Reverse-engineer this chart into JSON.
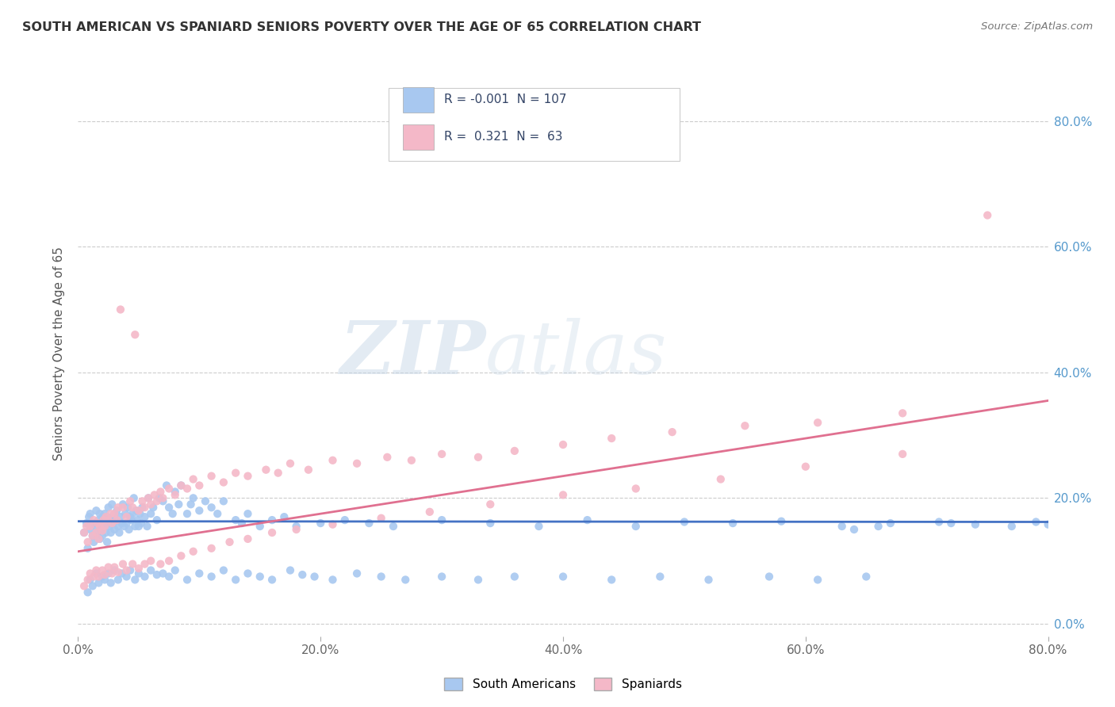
{
  "title": "SOUTH AMERICAN VS SPANIARD SENIORS POVERTY OVER THE AGE OF 65 CORRELATION CHART",
  "source": "Source: ZipAtlas.com",
  "ylabel": "Seniors Poverty Over the Age of 65",
  "xlim": [
    0.0,
    0.8
  ],
  "ylim": [
    -0.02,
    0.88
  ],
  "xtick_vals": [
    0.0,
    0.2,
    0.4,
    0.6,
    0.8
  ],
  "xtick_labels": [
    "0.0%",
    "20.0%",
    "40.0%",
    "60.0%",
    "80.0%"
  ],
  "ytick_vals": [
    0.0,
    0.2,
    0.4,
    0.6,
    0.8
  ],
  "ytick_labels_right": [
    "0.0%",
    "20.0%",
    "40.0%",
    "60.0%",
    "80.0%"
  ],
  "color_blue": "#a8c8f0",
  "color_pink": "#f4b8c8",
  "line_blue": "#4472c4",
  "line_pink": "#e07090",
  "grid_color": "#cccccc",
  "background_color": "#ffffff",
  "title_color": "#333333",
  "source_color": "#777777",
  "right_axis_color": "#5599cc",
  "blue_trendline_x": [
    0.0,
    0.8
  ],
  "blue_trendline_y": [
    0.163,
    0.162
  ],
  "pink_trendline_x": [
    0.0,
    0.8
  ],
  "pink_trendline_y": [
    0.115,
    0.355
  ],
  "blue_x": [
    0.005,
    0.007,
    0.008,
    0.009,
    0.01,
    0.01,
    0.012,
    0.013,
    0.013,
    0.015,
    0.015,
    0.016,
    0.017,
    0.018,
    0.018,
    0.019,
    0.02,
    0.02,
    0.021,
    0.022,
    0.022,
    0.023,
    0.023,
    0.024,
    0.025,
    0.025,
    0.026,
    0.027,
    0.028,
    0.028,
    0.029,
    0.03,
    0.03,
    0.031,
    0.032,
    0.033,
    0.034,
    0.035,
    0.036,
    0.037,
    0.038,
    0.039,
    0.04,
    0.041,
    0.042,
    0.043,
    0.044,
    0.045,
    0.046,
    0.047,
    0.048,
    0.049,
    0.05,
    0.051,
    0.052,
    0.053,
    0.055,
    0.057,
    0.058,
    0.06,
    0.062,
    0.065,
    0.067,
    0.07,
    0.073,
    0.075,
    0.078,
    0.08,
    0.083,
    0.085,
    0.09,
    0.093,
    0.095,
    0.1,
    0.105,
    0.11,
    0.115,
    0.12,
    0.13,
    0.135,
    0.14,
    0.15,
    0.16,
    0.17,
    0.18,
    0.2,
    0.22,
    0.24,
    0.26,
    0.3,
    0.34,
    0.38,
    0.42,
    0.46,
    0.5,
    0.54,
    0.58,
    0.63,
    0.67,
    0.71,
    0.74,
    0.77,
    0.79,
    0.8,
    0.72,
    0.66,
    0.64
  ],
  "blue_y": [
    0.145,
    0.16,
    0.12,
    0.17,
    0.15,
    0.175,
    0.14,
    0.13,
    0.16,
    0.155,
    0.18,
    0.145,
    0.165,
    0.135,
    0.175,
    0.15,
    0.14,
    0.17,
    0.16,
    0.155,
    0.175,
    0.145,
    0.165,
    0.13,
    0.16,
    0.185,
    0.155,
    0.145,
    0.17,
    0.19,
    0.16,
    0.15,
    0.175,
    0.165,
    0.18,
    0.155,
    0.145,
    0.17,
    0.16,
    0.19,
    0.155,
    0.175,
    0.16,
    0.185,
    0.15,
    0.17,
    0.165,
    0.175,
    0.2,
    0.155,
    0.18,
    0.165,
    0.155,
    0.175,
    0.16,
    0.185,
    0.17,
    0.155,
    0.2,
    0.175,
    0.185,
    0.165,
    0.2,
    0.195,
    0.22,
    0.185,
    0.175,
    0.21,
    0.19,
    0.22,
    0.175,
    0.19,
    0.2,
    0.18,
    0.195,
    0.185,
    0.175,
    0.195,
    0.165,
    0.16,
    0.175,
    0.155,
    0.165,
    0.17,
    0.155,
    0.16,
    0.165,
    0.16,
    0.155,
    0.165,
    0.16,
    0.155,
    0.165,
    0.155,
    0.162,
    0.16,
    0.163,
    0.155,
    0.16,
    0.162,
    0.158,
    0.155,
    0.162,
    0.158,
    0.16,
    0.155,
    0.15
  ],
  "blue_x2": [
    0.008,
    0.01,
    0.012,
    0.015,
    0.017,
    0.02,
    0.022,
    0.025,
    0.027,
    0.03,
    0.033,
    0.036,
    0.04,
    0.043,
    0.047,
    0.05,
    0.055,
    0.06,
    0.065,
    0.07,
    0.075,
    0.08,
    0.09,
    0.1,
    0.11,
    0.12,
    0.13,
    0.14,
    0.15,
    0.16,
    0.175,
    0.185,
    0.195,
    0.21,
    0.23,
    0.25,
    0.27,
    0.3,
    0.33,
    0.36,
    0.4,
    0.44,
    0.48,
    0.52,
    0.57,
    0.61,
    0.65
  ],
  "blue_y2": [
    0.05,
    0.07,
    0.06,
    0.08,
    0.065,
    0.075,
    0.07,
    0.08,
    0.065,
    0.085,
    0.07,
    0.08,
    0.075,
    0.085,
    0.07,
    0.08,
    0.075,
    0.085,
    0.078,
    0.08,
    0.075,
    0.085,
    0.07,
    0.08,
    0.075,
    0.085,
    0.07,
    0.08,
    0.075,
    0.07,
    0.085,
    0.078,
    0.075,
    0.07,
    0.08,
    0.075,
    0.07,
    0.075,
    0.07,
    0.075,
    0.075,
    0.07,
    0.075,
    0.07,
    0.075,
    0.07,
    0.075
  ],
  "pink_x": [
    0.005,
    0.007,
    0.008,
    0.01,
    0.012,
    0.013,
    0.015,
    0.016,
    0.017,
    0.018,
    0.02,
    0.021,
    0.022,
    0.023,
    0.025,
    0.027,
    0.028,
    0.03,
    0.032,
    0.033,
    0.035,
    0.037,
    0.04,
    0.043,
    0.045,
    0.047,
    0.05,
    0.053,
    0.055,
    0.058,
    0.06,
    0.063,
    0.065,
    0.068,
    0.07,
    0.075,
    0.08,
    0.085,
    0.09,
    0.095,
    0.1,
    0.11,
    0.12,
    0.13,
    0.14,
    0.155,
    0.165,
    0.175,
    0.19,
    0.21,
    0.23,
    0.255,
    0.275,
    0.3,
    0.33,
    0.36,
    0.4,
    0.44,
    0.49,
    0.55,
    0.61,
    0.68,
    0.75
  ],
  "pink_y": [
    0.145,
    0.155,
    0.13,
    0.155,
    0.14,
    0.165,
    0.145,
    0.16,
    0.135,
    0.155,
    0.148,
    0.165,
    0.155,
    0.17,
    0.165,
    0.175,
    0.16,
    0.175,
    0.165,
    0.185,
    0.5,
    0.185,
    0.17,
    0.195,
    0.185,
    0.46,
    0.18,
    0.195,
    0.185,
    0.2,
    0.19,
    0.205,
    0.195,
    0.21,
    0.2,
    0.215,
    0.205,
    0.22,
    0.215,
    0.23,
    0.22,
    0.235,
    0.225,
    0.24,
    0.235,
    0.245,
    0.24,
    0.255,
    0.245,
    0.26,
    0.255,
    0.265,
    0.26,
    0.27,
    0.265,
    0.275,
    0.285,
    0.295,
    0.305,
    0.315,
    0.32,
    0.335,
    0.65
  ],
  "pink_x2": [
    0.005,
    0.008,
    0.01,
    0.013,
    0.015,
    0.017,
    0.02,
    0.022,
    0.025,
    0.028,
    0.03,
    0.033,
    0.037,
    0.04,
    0.045,
    0.05,
    0.055,
    0.06,
    0.068,
    0.075,
    0.085,
    0.095,
    0.11,
    0.125,
    0.14,
    0.16,
    0.18,
    0.21,
    0.25,
    0.29,
    0.34,
    0.4,
    0.46,
    0.53,
    0.6,
    0.68
  ],
  "pink_y2": [
    0.06,
    0.07,
    0.08,
    0.075,
    0.085,
    0.075,
    0.085,
    0.078,
    0.09,
    0.08,
    0.09,
    0.082,
    0.095,
    0.085,
    0.095,
    0.088,
    0.095,
    0.1,
    0.095,
    0.1,
    0.108,
    0.115,
    0.12,
    0.13,
    0.135,
    0.145,
    0.15,
    0.158,
    0.168,
    0.178,
    0.19,
    0.205,
    0.215,
    0.23,
    0.25,
    0.27
  ]
}
